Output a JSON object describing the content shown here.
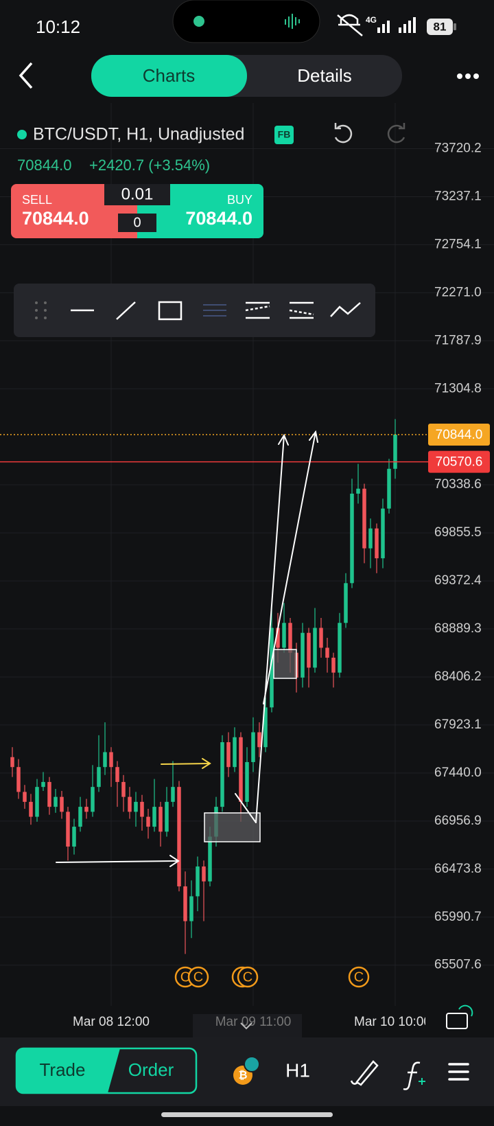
{
  "status_bar": {
    "time": "10:12",
    "network": "4G",
    "battery": "81"
  },
  "tabs": [
    "Charts",
    "Details"
  ],
  "symbol": {
    "name": "BTC/USDT, H1, Unadjusted",
    "badge": "FB",
    "price": "70844.0",
    "change": "+2420.7 (+3.54%)"
  },
  "trade_panel": {
    "sell_label": "SELL",
    "sell_price": "70844.0",
    "buy_label": "BUY",
    "buy_price": "70844.0",
    "quantity": "0.01",
    "count": "0"
  },
  "chart_data": {
    "type": "candlestick",
    "ohlc": [
      [
        67600,
        67700,
        67400,
        67500
      ],
      [
        67500,
        67580,
        67180,
        67250
      ],
      [
        67250,
        67320,
        67080,
        67150
      ],
      [
        67150,
        67230,
        66920,
        67000
      ],
      [
        67000,
        67380,
        66950,
        67300
      ],
      [
        67300,
        67450,
        67260,
        67350
      ],
      [
        67350,
        67400,
        67020,
        67100
      ],
      [
        67100,
        67280,
        67040,
        67200
      ],
      [
        67200,
        67260,
        66980,
        67050
      ],
      [
        67050,
        67100,
        66560,
        66700
      ],
      [
        66700,
        66980,
        66620,
        66900
      ],
      [
        66900,
        67200,
        66850,
        67100
      ],
      [
        67100,
        67180,
        66980,
        67050
      ],
      [
        67050,
        67520,
        67000,
        67300
      ],
      [
        67300,
        67820,
        67250,
        67500
      ],
      [
        67500,
        67950,
        67420,
        67650
      ],
      [
        67650,
        67700,
        67300,
        67500
      ],
      [
        67500,
        67560,
        67100,
        67350
      ],
      [
        67350,
        67420,
        67050,
        67200
      ],
      [
        67200,
        67300,
        66980,
        67050
      ],
      [
        67050,
        67250,
        66900,
        67150
      ],
      [
        67150,
        67220,
        66860,
        67000
      ],
      [
        67000,
        67080,
        66780,
        66900
      ],
      [
        66900,
        67380,
        66850,
        67100
      ],
      [
        67100,
        67150,
        66700,
        66850
      ],
      [
        66850,
        67300,
        66800,
        67150
      ],
      [
        67150,
        67560,
        67100,
        67300
      ],
      [
        67300,
        67360,
        66250,
        66300
      ],
      [
        66300,
        66450,
        65620,
        65950
      ],
      [
        65950,
        66360,
        65780,
        66200
      ],
      [
        66200,
        66600,
        66050,
        66500
      ],
      [
        66500,
        66560,
        65950,
        66350
      ],
      [
        66350,
        66900,
        66300,
        66800
      ],
      [
        66800,
        67200,
        66700,
        67100
      ],
      [
        67100,
        67820,
        67050,
        67750
      ],
      [
        67750,
        67850,
        67400,
        67500
      ],
      [
        67500,
        67900,
        67450,
        67800
      ],
      [
        67800,
        67850,
        66950,
        67150
      ],
      [
        67150,
        67700,
        67100,
        67550
      ],
      [
        67550,
        68000,
        67450,
        67850
      ],
      [
        67850,
        67950,
        67600,
        67700
      ],
      [
        67700,
        68200,
        67650,
        68100
      ],
      [
        68100,
        69100,
        68050,
        68900
      ],
      [
        68900,
        69050,
        68550,
        68700
      ],
      [
        68700,
        69150,
        68650,
        68950
      ],
      [
        68950,
        69000,
        68450,
        68650
      ],
      [
        68650,
        68750,
        68250,
        68400
      ],
      [
        68400,
        68950,
        68300,
        68850
      ],
      [
        68850,
        68900,
        68300,
        68500
      ],
      [
        68500,
        69100,
        68450,
        68900
      ],
      [
        68900,
        69000,
        68600,
        68700
      ],
      [
        68700,
        68800,
        68450,
        68600
      ],
      [
        68600,
        68650,
        68300,
        68450
      ],
      [
        68450,
        69050,
        68400,
        68950
      ],
      [
        68950,
        69450,
        68900,
        69350
      ],
      [
        69350,
        70400,
        69300,
        70250
      ],
      [
        70250,
        70550,
        70150,
        70300
      ],
      [
        70300,
        70350,
        69550,
        69700
      ],
      [
        69700,
        70000,
        69500,
        69900
      ],
      [
        69900,
        69950,
        69450,
        69600
      ],
      [
        69600,
        70200,
        69500,
        70100
      ],
      [
        70100,
        70600,
        70050,
        70500
      ],
      [
        70500,
        71000,
        70400,
        70844
      ]
    ],
    "up_color": "#1fc38d",
    "down_color": "#f0555a",
    "ylim": [
      65236.2,
      74179.5
    ],
    "yticks": [
      73720.2,
      73237.1,
      72754.1,
      {
        "value": 72271.0,
        "label": "72271.0"
      },
      71787.9,
      71304.8,
      70338.6,
      69855.5,
      69372.4,
      68889.3,
      68406.2,
      67923.1,
      {
        "value": 67440.0,
        "label": "67440.0"
      },
      66956.9,
      66473.8,
      65990.7,
      65507.6
    ],
    "x_tick_labels": [
      "Mar 08 12:00",
      "Mar 09 11:00",
      "Mar 10 10:00"
    ],
    "price_tags": [
      {
        "value": 70844.0,
        "label": "70844.0",
        "color": "#f5a623"
      },
      {
        "value": 70570.6,
        "label": "70570.6",
        "color": "#f03b3b"
      }
    ],
    "event_markers": [
      "C",
      "C",
      "C",
      "C",
      "C"
    ]
  },
  "bottom_bar": {
    "trade": "Trade",
    "order": "Order",
    "interval": "H1"
  }
}
